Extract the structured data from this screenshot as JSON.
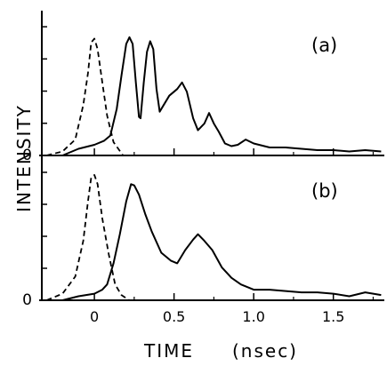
{
  "chart_data": [
    {
      "type": "line",
      "panel_label": "(a)",
      "xlabel": "TIME",
      "xunit": "(nsec)",
      "ylabel": "INTENSITY",
      "zero_label": "0",
      "xlim": [
        -0.33,
        1.82
      ],
      "ylim": [
        0,
        1.05
      ],
      "grid": false,
      "series": [
        {
          "style": "dashed",
          "points": [
            [
              -0.3,
              0.0
            ],
            [
              -0.2,
              0.03
            ],
            [
              -0.12,
              0.12
            ],
            [
              -0.07,
              0.38
            ],
            [
              -0.04,
              0.62
            ],
            [
              -0.02,
              0.85
            ],
            [
              0.0,
              0.88
            ],
            [
              0.02,
              0.8
            ],
            [
              0.05,
              0.55
            ],
            [
              0.08,
              0.3
            ],
            [
              0.12,
              0.1
            ],
            [
              0.18,
              0.0
            ]
          ]
        },
        {
          "style": "solid",
          "points": [
            [
              -0.2,
              0.0
            ],
            [
              -0.1,
              0.05
            ],
            [
              0.0,
              0.08
            ],
            [
              0.06,
              0.11
            ],
            [
              0.1,
              0.15
            ],
            [
              0.14,
              0.35
            ],
            [
              0.17,
              0.6
            ],
            [
              0.2,
              0.84
            ],
            [
              0.22,
              0.89
            ],
            [
              0.24,
              0.84
            ],
            [
              0.26,
              0.55
            ],
            [
              0.28,
              0.29
            ],
            [
              0.29,
              0.28
            ],
            [
              0.31,
              0.55
            ],
            [
              0.33,
              0.78
            ],
            [
              0.35,
              0.86
            ],
            [
              0.37,
              0.8
            ],
            [
              0.39,
              0.5
            ],
            [
              0.41,
              0.33
            ],
            [
              0.43,
              0.37
            ],
            [
              0.47,
              0.45
            ],
            [
              0.52,
              0.5
            ],
            [
              0.55,
              0.55
            ],
            [
              0.58,
              0.48
            ],
            [
              0.62,
              0.28
            ],
            [
              0.65,
              0.19
            ],
            [
              0.69,
              0.24
            ],
            [
              0.72,
              0.32
            ],
            [
              0.75,
              0.24
            ],
            [
              0.78,
              0.18
            ],
            [
              0.82,
              0.09
            ],
            [
              0.86,
              0.07
            ],
            [
              0.9,
              0.08
            ],
            [
              0.95,
              0.12
            ],
            [
              1.0,
              0.09
            ],
            [
              1.1,
              0.06
            ],
            [
              1.2,
              0.06
            ],
            [
              1.3,
              0.05
            ],
            [
              1.4,
              0.04
            ],
            [
              1.5,
              0.04
            ],
            [
              1.6,
              0.03
            ],
            [
              1.7,
              0.04
            ],
            [
              1.8,
              0.03
            ]
          ]
        }
      ]
    },
    {
      "type": "line",
      "panel_label": "(b)",
      "zero_label": "0",
      "xlim": [
        -0.33,
        1.82
      ],
      "ylim": [
        0,
        1.05
      ],
      "x_ticks": [
        0,
        0.5,
        1.0,
        1.5
      ],
      "x_tick_labels": [
        "0",
        "0.5",
        "1.0",
        "1.5"
      ],
      "series": [
        {
          "style": "dashed",
          "points": [
            [
              -0.3,
              0.0
            ],
            [
              -0.2,
              0.05
            ],
            [
              -0.12,
              0.18
            ],
            [
              -0.07,
              0.45
            ],
            [
              -0.04,
              0.75
            ],
            [
              -0.02,
              0.93
            ],
            [
              0.0,
              0.95
            ],
            [
              0.02,
              0.88
            ],
            [
              0.05,
              0.62
            ],
            [
              0.09,
              0.35
            ],
            [
              0.13,
              0.12
            ],
            [
              0.17,
              0.04
            ],
            [
              0.22,
              0.0
            ]
          ]
        },
        {
          "style": "solid",
          "points": [
            [
              -0.2,
              0.0
            ],
            [
              -0.1,
              0.03
            ],
            [
              0.0,
              0.05
            ],
            [
              0.05,
              0.08
            ],
            [
              0.08,
              0.12
            ],
            [
              0.12,
              0.28
            ],
            [
              0.16,
              0.5
            ],
            [
              0.2,
              0.75
            ],
            [
              0.23,
              0.88
            ],
            [
              0.25,
              0.87
            ],
            [
              0.28,
              0.8
            ],
            [
              0.32,
              0.65
            ],
            [
              0.36,
              0.52
            ],
            [
              0.42,
              0.36
            ],
            [
              0.48,
              0.3
            ],
            [
              0.52,
              0.28
            ],
            [
              0.57,
              0.38
            ],
            [
              0.62,
              0.46
            ],
            [
              0.65,
              0.5
            ],
            [
              0.69,
              0.45
            ],
            [
              0.74,
              0.38
            ],
            [
              0.8,
              0.25
            ],
            [
              0.86,
              0.17
            ],
            [
              0.92,
              0.12
            ],
            [
              1.0,
              0.08
            ],
            [
              1.1,
              0.08
            ],
            [
              1.2,
              0.07
            ],
            [
              1.3,
              0.06
            ],
            [
              1.4,
              0.06
            ],
            [
              1.5,
              0.05
            ],
            [
              1.6,
              0.03
            ],
            [
              1.7,
              0.06
            ],
            [
              1.75,
              0.05
            ],
            [
              1.8,
              0.04
            ]
          ]
        }
      ]
    }
  ]
}
